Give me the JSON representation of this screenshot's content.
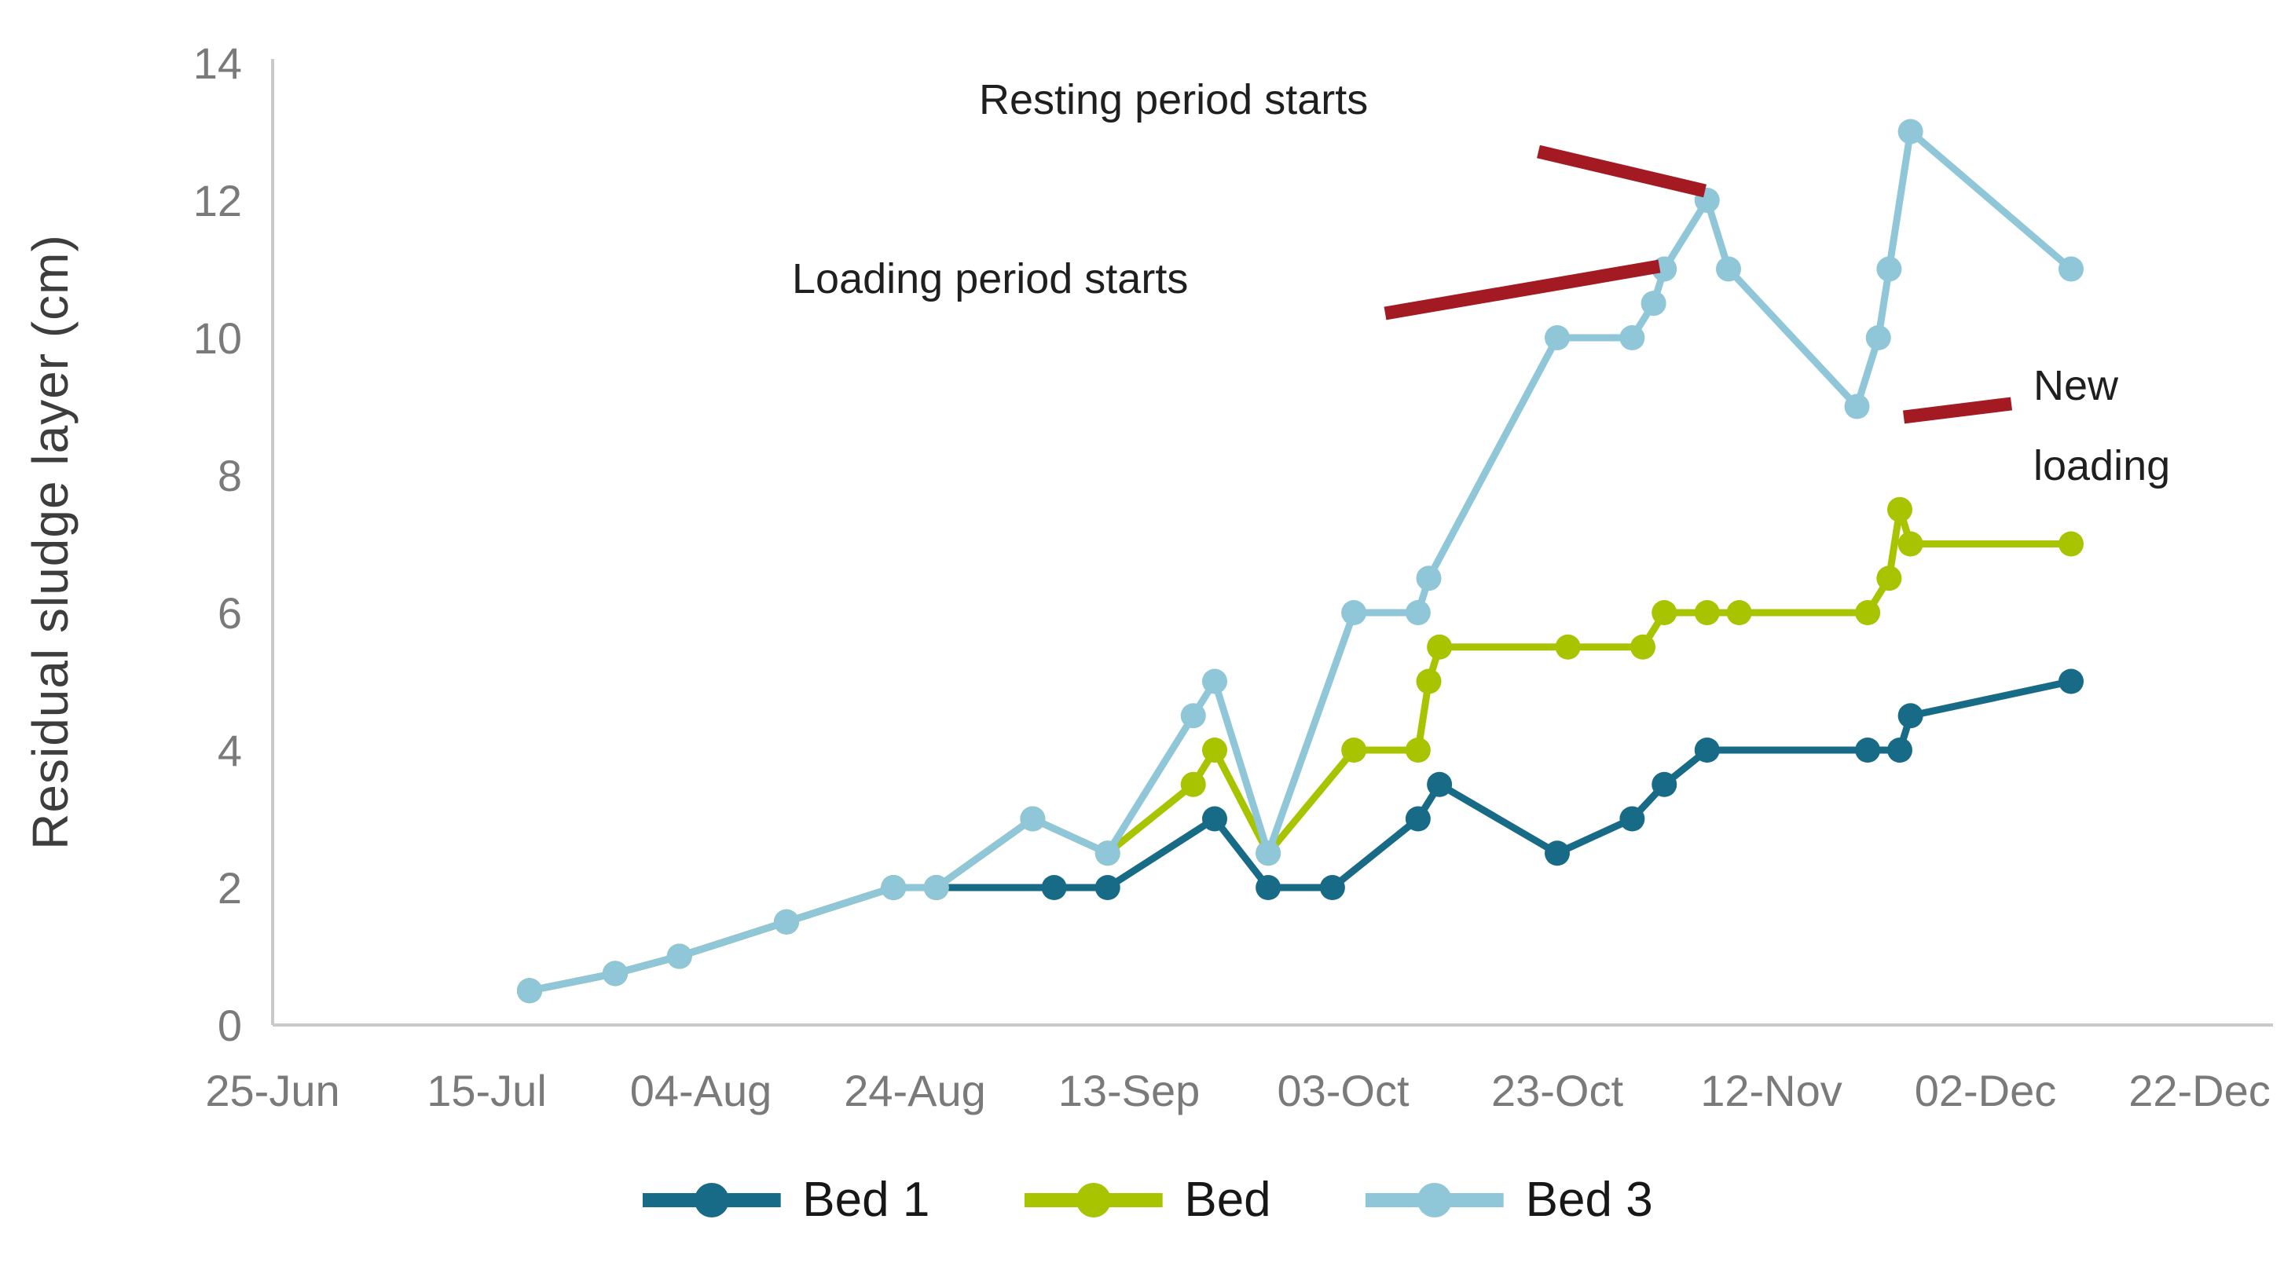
{
  "chart_data": {
    "type": "line",
    "title": "",
    "xlabel": "",
    "ylabel": "Residual sludge layer (cm)",
    "ylim": [
      0,
      14
    ],
    "y_ticks": [
      0,
      2,
      4,
      6,
      8,
      10,
      12,
      14
    ],
    "x_ticks": [
      {
        "label": "25-Jun",
        "day": 0
      },
      {
        "label": "15-Jul",
        "day": 20
      },
      {
        "label": "04-Aug",
        "day": 40
      },
      {
        "label": "24-Aug",
        "day": 60
      },
      {
        "label": "13-Sep",
        "day": 80
      },
      {
        "label": "03-Oct",
        "day": 100
      },
      {
        "label": "23-Oct",
        "day": 120
      },
      {
        "label": "12-Nov",
        "day": 140
      },
      {
        "label": "02-Dec",
        "day": 160
      },
      {
        "label": "22-Dec",
        "day": 180
      }
    ],
    "grid": false,
    "legend_position": "bottom",
    "axis": {
      "line_color": "#c9c9c9",
      "tick_label_color": "#7a7a7a",
      "title_color": "#3d3d3d"
    },
    "series": [
      {
        "name": "Bed 1",
        "color": "#176b87",
        "points": [
          {
            "date": "19-Jul",
            "day": 24,
            "value": 0.5
          },
          {
            "date": "27-Jul",
            "day": 32,
            "value": 0.75
          },
          {
            "date": "02-Aug",
            "day": 38,
            "value": 1
          },
          {
            "date": "12-Aug",
            "day": 48,
            "value": 1.5
          },
          {
            "date": "22-Aug",
            "day": 58,
            "value": 2
          },
          {
            "date": "26-Aug",
            "day": 62,
            "value": 2
          },
          {
            "date": "06-Sep",
            "day": 73,
            "value": 2
          },
          {
            "date": "11-Sep",
            "day": 78,
            "value": 2
          },
          {
            "date": "21-Sep",
            "day": 88,
            "value": 3
          },
          {
            "date": "26-Sep",
            "day": 93,
            "value": 2
          },
          {
            "date": "02-Oct",
            "day": 99,
            "value": 2
          },
          {
            "date": "10-Oct",
            "day": 107,
            "value": 3
          },
          {
            "date": "12-Oct",
            "day": 109,
            "value": 3.5
          },
          {
            "date": "23-Oct",
            "day": 120,
            "value": 2.5
          },
          {
            "date": "30-Oct",
            "day": 127,
            "value": 3
          },
          {
            "date": "02-Nov",
            "day": 130,
            "value": 3.5
          },
          {
            "date": "06-Nov",
            "day": 134,
            "value": 4
          },
          {
            "date": "21-Nov",
            "day": 149,
            "value": 4
          },
          {
            "date": "24-Nov",
            "day": 152,
            "value": 4
          },
          {
            "date": "25-Nov",
            "day": 153,
            "value": 4.5
          },
          {
            "date": "10-Dec",
            "day": 168,
            "value": 5
          }
        ]
      },
      {
        "name": "Bed",
        "color": "#a8c400",
        "points": [
          {
            "date": "19-Jul",
            "day": 24,
            "value": 0.5
          },
          {
            "date": "27-Jul",
            "day": 32,
            "value": 0.75
          },
          {
            "date": "02-Aug",
            "day": 38,
            "value": 1
          },
          {
            "date": "12-Aug",
            "day": 48,
            "value": 1.5
          },
          {
            "date": "22-Aug",
            "day": 58,
            "value": 2
          },
          {
            "date": "26-Aug",
            "day": 62,
            "value": 2
          },
          {
            "date": "04-Sep",
            "day": 71,
            "value": 3
          },
          {
            "date": "11-Sep",
            "day": 78,
            "value": 2.5
          },
          {
            "date": "19-Sep",
            "day": 86,
            "value": 3.5
          },
          {
            "date": "21-Sep",
            "day": 88,
            "value": 4
          },
          {
            "date": "26-Sep",
            "day": 93,
            "value": 2.5
          },
          {
            "date": "04-Oct",
            "day": 101,
            "value": 4
          },
          {
            "date": "10-Oct",
            "day": 107,
            "value": 4
          },
          {
            "date": "11-Oct",
            "day": 108,
            "value": 5
          },
          {
            "date": "12-Oct",
            "day": 109,
            "value": 5.5
          },
          {
            "date": "24-Oct",
            "day": 121,
            "value": 5.5
          },
          {
            "date": "31-Oct",
            "day": 128,
            "value": 5.5
          },
          {
            "date": "02-Nov",
            "day": 130,
            "value": 6
          },
          {
            "date": "06-Nov",
            "day": 134,
            "value": 6
          },
          {
            "date": "09-Nov",
            "day": 137,
            "value": 6
          },
          {
            "date": "21-Nov",
            "day": 149,
            "value": 6
          },
          {
            "date": "23-Nov",
            "day": 151,
            "value": 6.5
          },
          {
            "date": "24-Nov",
            "day": 152,
            "value": 7.5
          },
          {
            "date": "25-Nov",
            "day": 153,
            "value": 7
          },
          {
            "date": "10-Dec",
            "day": 168,
            "value": 7
          }
        ]
      },
      {
        "name": "Bed 3",
        "color": "#8fc6d8",
        "points": [
          {
            "date": "19-Jul",
            "day": 24,
            "value": 0.5
          },
          {
            "date": "27-Jul",
            "day": 32,
            "value": 0.75
          },
          {
            "date": "02-Aug",
            "day": 38,
            "value": 1
          },
          {
            "date": "12-Aug",
            "day": 48,
            "value": 1.5
          },
          {
            "date": "22-Aug",
            "day": 58,
            "value": 2
          },
          {
            "date": "26-Aug",
            "day": 62,
            "value": 2
          },
          {
            "date": "04-Sep",
            "day": 71,
            "value": 3
          },
          {
            "date": "11-Sep",
            "day": 78,
            "value": 2.5
          },
          {
            "date": "19-Sep",
            "day": 86,
            "value": 4.5
          },
          {
            "date": "21-Sep",
            "day": 88,
            "value": 5
          },
          {
            "date": "26-Sep",
            "day": 93,
            "value": 2.5
          },
          {
            "date": "04-Oct",
            "day": 101,
            "value": 6
          },
          {
            "date": "10-Oct",
            "day": 107,
            "value": 6
          },
          {
            "date": "11-Oct",
            "day": 108,
            "value": 6.5
          },
          {
            "date": "23-Oct",
            "day": 120,
            "value": 10
          },
          {
            "date": "30-Oct",
            "day": 127,
            "value": 10
          },
          {
            "date": "01-Nov",
            "day": 129,
            "value": 10.5
          },
          {
            "date": "02-Nov",
            "day": 130,
            "value": 11
          },
          {
            "date": "06-Nov",
            "day": 134,
            "value": 12
          },
          {
            "date": "08-Nov",
            "day": 136,
            "value": 11
          },
          {
            "date": "20-Nov",
            "day": 148,
            "value": 9
          },
          {
            "date": "22-Nov",
            "day": 150,
            "value": 10
          },
          {
            "date": "23-Nov",
            "day": 151,
            "value": 11
          },
          {
            "date": "25-Nov",
            "day": 153,
            "value": 13
          },
          {
            "date": "10-Dec",
            "day": 168,
            "value": 11
          }
        ]
      }
    ],
    "annotations": {
      "pointer_color": "#a31a23",
      "texts": [
        {
          "id": "resting",
          "text": "Resting period starts",
          "x": 1246,
          "y": 96
        },
        {
          "id": "loading",
          "text": "Loading period starts",
          "x": 1008,
          "y": 324
        },
        {
          "id": "new-loading",
          "lines": [
            "New",
            "loading"
          ],
          "x": 2588,
          "y": 440
        }
      ],
      "pointer_lines": [
        {
          "x1": 1958,
          "y1": 193,
          "x2": 2170,
          "y2": 243
        },
        {
          "x1": 1763,
          "y1": 399,
          "x2": 2112,
          "y2": 339
        },
        {
          "x1": 2423,
          "y1": 531,
          "x2": 2560,
          "y2": 514
        }
      ]
    }
  },
  "legend": {
    "items": [
      {
        "label": "Bed 1",
        "color": "#176b87"
      },
      {
        "label": "Bed",
        "color": "#a8c400"
      },
      {
        "label": "Bed 3",
        "color": "#8fc6d8"
      }
    ]
  }
}
